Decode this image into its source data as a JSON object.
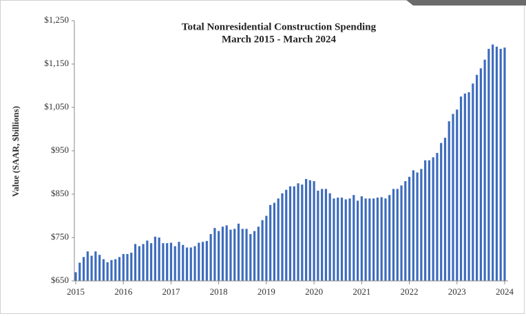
{
  "chart_data": {
    "type": "bar",
    "title": "Total Nonresidential Construction Spending",
    "subtitle": "March 2015 - March 2024",
    "y_label": "Value (SAAR, $billions)",
    "color": "#3d6cbd",
    "grid": false,
    "categories": [
      "2015",
      null,
      null,
      null,
      null,
      null,
      null,
      null,
      null,
      null,
      null,
      null,
      "2016",
      null,
      null,
      null,
      null,
      null,
      null,
      null,
      null,
      null,
      null,
      null,
      "2017",
      null,
      null,
      null,
      null,
      null,
      null,
      null,
      null,
      null,
      null,
      null,
      "2018",
      null,
      null,
      null,
      null,
      null,
      null,
      null,
      null,
      null,
      null,
      null,
      "2019",
      null,
      null,
      null,
      null,
      null,
      null,
      null,
      null,
      null,
      null,
      null,
      "2020",
      null,
      null,
      null,
      null,
      null,
      null,
      null,
      null,
      null,
      null,
      null,
      "2021",
      null,
      null,
      null,
      null,
      null,
      null,
      null,
      null,
      null,
      null,
      null,
      "2022",
      null,
      null,
      null,
      null,
      null,
      null,
      null,
      null,
      null,
      null,
      null,
      "2023",
      null,
      null,
      null,
      null,
      null,
      null,
      null,
      null,
      null,
      null,
      null,
      "2024"
    ],
    "values": [
      670,
      692,
      705,
      718,
      708,
      718,
      710,
      700,
      693,
      698,
      700,
      705,
      712,
      712,
      715,
      735,
      730,
      735,
      743,
      737,
      752,
      750,
      737,
      737,
      738,
      730,
      740,
      733,
      727,
      727,
      730,
      738,
      740,
      742,
      758,
      772,
      765,
      775,
      778,
      768,
      770,
      782,
      770,
      770,
      758,
      765,
      775,
      790,
      800,
      825,
      830,
      840,
      852,
      860,
      868,
      868,
      875,
      872,
      885,
      882,
      880,
      858,
      862,
      862,
      852,
      840,
      842,
      842,
      838,
      840,
      848,
      835,
      845,
      840,
      840,
      840,
      842,
      843,
      840,
      848,
      862,
      862,
      870,
      880,
      890,
      905,
      900,
      908,
      928,
      928,
      935,
      945,
      968,
      980,
      1018,
      1035,
      1045,
      1075,
      1082,
      1085,
      1105,
      1125,
      1140,
      1160,
      1185,
      1195,
      1190,
      1185,
      1188
    ],
    "ylim": [
      650,
      1250
    ],
    "yticks": [
      {
        "value": 650,
        "label": "$650"
      },
      {
        "value": 750,
        "label": "$750"
      },
      {
        "value": 850,
        "label": "$850"
      },
      {
        "value": 950,
        "label": "$950"
      },
      {
        "value": 1050,
        "label": "$1,050"
      },
      {
        "value": 1150,
        "label": "$1,150"
      },
      {
        "value": 1250,
        "label": "$1,250"
      }
    ]
  }
}
